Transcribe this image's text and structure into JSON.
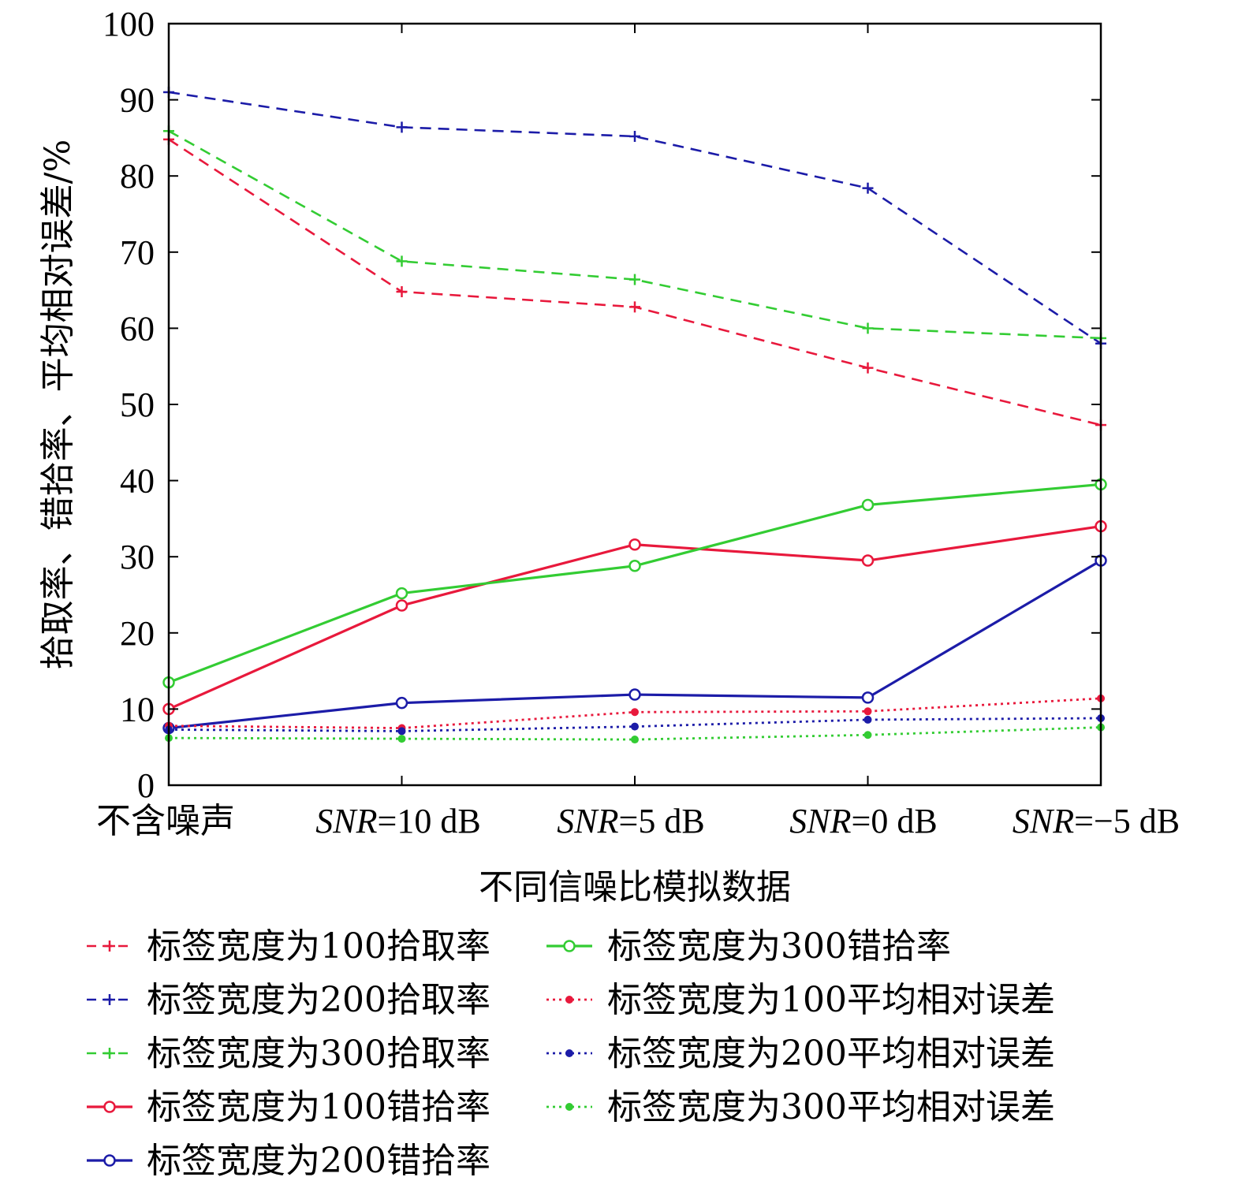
{
  "chart_data": {
    "type": "line",
    "title": "",
    "xlabel": "不同信噪比模拟数据",
    "ylabel": "拾取率、错拾率、平均相对误差/%",
    "ylim": [
      0,
      100
    ],
    "yticks": [
      "0",
      "10",
      "20",
      "30",
      "40",
      "50",
      "60",
      "70",
      "80",
      "90",
      "100"
    ],
    "grid": false,
    "legend_position": "bottom",
    "categories": [
      {
        "italic": "",
        "rest": "不含噪声"
      },
      {
        "italic": "SNR",
        "rest": "=10 dB"
      },
      {
        "italic": "SNR",
        "rest": "=5 dB"
      },
      {
        "italic": "SNR",
        "rest": "=0 dB"
      },
      {
        "italic": "SNR",
        "rest": "=−5 dB"
      }
    ],
    "series": [
      {
        "name": "标签宽度为100拾取率",
        "color": "#e8193c",
        "style": "dashed",
        "marker": "plus",
        "values": [
          84.8,
          64.8,
          62.8,
          54.8,
          47.3
        ]
      },
      {
        "name": "标签宽度为200拾取率",
        "color": "#1c1ca8",
        "style": "dashed",
        "marker": "plus",
        "values": [
          91.0,
          86.4,
          85.2,
          78.4,
          58.0
        ]
      },
      {
        "name": "标签宽度为300拾取率",
        "color": "#33cc33",
        "style": "dashed",
        "marker": "plus",
        "values": [
          85.9,
          68.8,
          66.4,
          60.0,
          58.7
        ]
      },
      {
        "name": "标签宽度为100错拾率",
        "color": "#e8193c",
        "style": "solid",
        "marker": "circle",
        "values": [
          10.0,
          23.6,
          31.6,
          29.5,
          34.0
        ]
      },
      {
        "name": "标签宽度为200错拾率",
        "color": "#1c1ca8",
        "style": "solid",
        "marker": "circle",
        "values": [
          7.5,
          10.8,
          11.9,
          11.5,
          29.5
        ]
      },
      {
        "name": "标签宽度为300错拾率",
        "color": "#33cc33",
        "style": "solid",
        "marker": "circle",
        "values": [
          13.5,
          25.2,
          28.8,
          36.8,
          39.5
        ]
      },
      {
        "name": "标签宽度为100平均相对误差",
        "color": "#e8193c",
        "style": "dotted",
        "marker": "dot",
        "values": [
          7.8,
          7.5,
          9.6,
          9.7,
          11.4
        ]
      },
      {
        "name": "标签宽度为200平均相对误差",
        "color": "#1c1ca8",
        "style": "dotted",
        "marker": "dot",
        "values": [
          7.3,
          7.1,
          7.7,
          8.6,
          8.8
        ]
      },
      {
        "name": "标签宽度为300平均相对误差",
        "color": "#33cc33",
        "style": "dotted",
        "marker": "dot",
        "values": [
          6.2,
          6.1,
          6.0,
          6.6,
          7.6
        ]
      }
    ]
  }
}
